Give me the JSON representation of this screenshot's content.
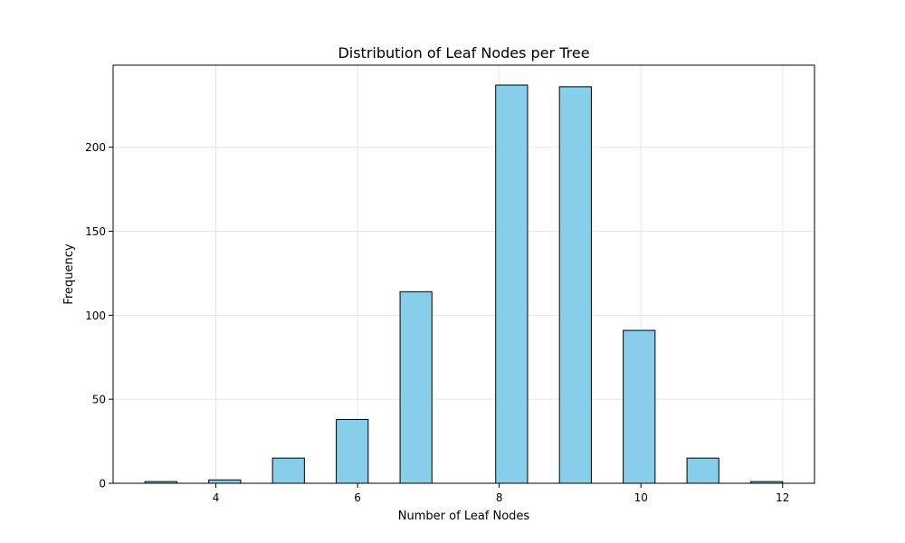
{
  "chart_data": {
    "type": "bar",
    "title": "Distribution of Leaf Nodes per Tree",
    "xlabel": "Number of Leaf Nodes",
    "ylabel": "Frequency",
    "bins": [
      {
        "start": 3.0,
        "end": 3.45,
        "count": 1
      },
      {
        "start": 3.9,
        "end": 4.35,
        "count": 2
      },
      {
        "start": 4.8,
        "end": 5.25,
        "count": 15
      },
      {
        "start": 5.7,
        "end": 6.15,
        "count": 38
      },
      {
        "start": 6.6,
        "end": 7.05,
        "count": 114
      },
      {
        "start": 7.95,
        "end": 8.4,
        "count": 237
      },
      {
        "start": 8.85,
        "end": 9.3,
        "count": 236
      },
      {
        "start": 9.75,
        "end": 10.2,
        "count": 91
      },
      {
        "start": 10.65,
        "end": 11.1,
        "count": 15
      },
      {
        "start": 11.55,
        "end": 12.0,
        "count": 1
      }
    ],
    "xlim": [
      2.55,
      12.45
    ],
    "ylim": [
      0,
      248.85
    ],
    "xticks": [
      4,
      6,
      8,
      10,
      12
    ],
    "yticks": [
      0,
      50,
      100,
      150,
      200
    ],
    "grid": true,
    "colors": {
      "bar_fill": "#87ceeb",
      "bar_edge": "#000000",
      "grid": "#e6e6e6",
      "axis": "#000000"
    }
  }
}
